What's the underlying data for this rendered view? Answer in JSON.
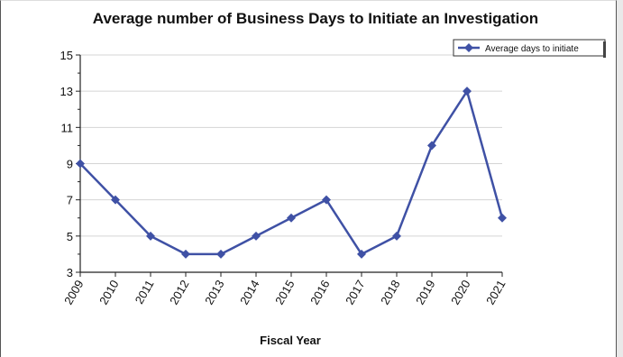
{
  "chart_data": {
    "type": "line",
    "title": "Average number of Business Days to Initiate an Investigation",
    "xlabel": "Fiscal Year",
    "ylabel": "",
    "categories": [
      "2009",
      "2010",
      "2011",
      "2012",
      "2013",
      "2014",
      "2015",
      "2016",
      "2017",
      "2018",
      "2019",
      "2020",
      "2021"
    ],
    "series": [
      {
        "name": "Average days to initiate",
        "values": [
          9,
          7,
          5,
          4,
          4,
          5,
          6,
          7,
          4,
          5,
          10,
          13,
          6
        ]
      }
    ],
    "ylim": [
      3,
      15
    ],
    "yticks": [
      3,
      5,
      7,
      9,
      11,
      13,
      15
    ],
    "grid": true,
    "legend": "top-right",
    "colors": {
      "line": "#3f51a5",
      "grid": "#d4d4d4",
      "axis": "#222222"
    }
  }
}
